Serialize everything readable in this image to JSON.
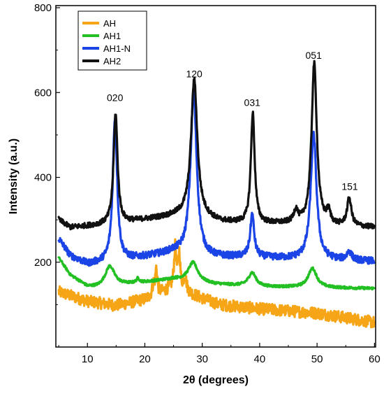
{
  "chart_data": {
    "type": "line",
    "title": "",
    "xlabel": "2θ (degrees)",
    "ylabel": "Intensity (a.u.)",
    "xlim": [
      4.5,
      60.2
    ],
    "ylim": [
      0,
      805
    ],
    "xticks": [
      10,
      20,
      30,
      40,
      50,
      60
    ],
    "yticks": [
      200,
      400,
      600,
      800
    ],
    "xtick_labels": [
      "10",
      "20",
      "30",
      "40",
      "50",
      "60"
    ],
    "ytick_labels": [
      "200",
      "400",
      "600",
      "800"
    ],
    "grid": false,
    "legend_position": "top-left",
    "series": [
      {
        "name": "AH",
        "color": "#F5A516",
        "baseline": [
          [
            5,
            130
          ],
          [
            10,
            108
          ],
          [
            15,
            98
          ],
          [
            20,
            112
          ],
          [
            25,
            140
          ],
          [
            28,
            125
          ],
          [
            33,
            100
          ],
          [
            40,
            90
          ],
          [
            50,
            80
          ],
          [
            60,
            58
          ]
        ],
        "peaks": [
          [
            21.5,
            25,
            0.25
          ],
          [
            22,
            60,
            0.2
          ],
          [
            25.3,
            95,
            0.25
          ],
          [
            26,
            80,
            0.2
          ],
          [
            27,
            35,
            0.3
          ]
        ],
        "noise": 14
      },
      {
        "name": "AH1",
        "color": "#22C022",
        "baseline": [
          [
            5,
            210
          ],
          [
            7,
            170
          ],
          [
            10,
            142
          ],
          [
            12,
            140
          ],
          [
            17,
            148
          ],
          [
            25,
            160
          ],
          [
            32,
            148
          ],
          [
            40,
            142
          ],
          [
            50,
            140
          ],
          [
            60,
            138
          ]
        ],
        "peaks": [
          [
            13.9,
            48,
            1.0
          ],
          [
            28.4,
            45,
            1.0
          ],
          [
            38.7,
            32,
            0.8
          ],
          [
            49.2,
            45,
            0.9
          ],
          [
            18.8,
            10,
            0.3
          ]
        ],
        "noise": 3
      },
      {
        "name": "AH1-N",
        "color": "#1B44E6",
        "baseline": [
          [
            5,
            255
          ],
          [
            7,
            215
          ],
          [
            10,
            195
          ],
          [
            15,
            202
          ],
          [
            20,
            212
          ],
          [
            25,
            222
          ],
          [
            30,
            210
          ],
          [
            38,
            212
          ],
          [
            45,
            208
          ],
          [
            52,
            205
          ],
          [
            60,
            202
          ]
        ],
        "peaks": [
          [
            14.8,
            340,
            0.45
          ],
          [
            28.5,
            385,
            0.65
          ],
          [
            38.7,
            100,
            0.4
          ],
          [
            49.4,
            295,
            0.6
          ],
          [
            55.6,
            20,
            0.5
          ]
        ],
        "noise": 8
      },
      {
        "name": "AH2",
        "color": "#111111",
        "baseline": [
          [
            5,
            300
          ],
          [
            7,
            282
          ],
          [
            10,
            285
          ],
          [
            15,
            290
          ],
          [
            20,
            300
          ],
          [
            25,
            308
          ],
          [
            28,
            312
          ],
          [
            33,
            295
          ],
          [
            38,
            290
          ],
          [
            45,
            290
          ],
          [
            52,
            285
          ],
          [
            60,
            282
          ]
        ],
        "peaks": [
          [
            14.9,
            260,
            0.42
          ],
          [
            28.6,
            320,
            0.65
          ],
          [
            38.8,
            260,
            0.4
          ],
          [
            49.5,
            380,
            0.55
          ],
          [
            55.6,
            65,
            0.45
          ],
          [
            46.3,
            30,
            0.4
          ],
          [
            52,
            28,
            0.4
          ]
        ],
        "noise": 6
      }
    ],
    "annotations": [
      {
        "text": "020",
        "x": 14.8,
        "y": 580
      },
      {
        "text": "120",
        "x": 28.6,
        "y": 636
      },
      {
        "text": "031",
        "x": 38.7,
        "y": 568
      },
      {
        "text": "051",
        "x": 49.4,
        "y": 680
      },
      {
        "text": "151",
        "x": 55.7,
        "y": 370
      }
    ]
  }
}
